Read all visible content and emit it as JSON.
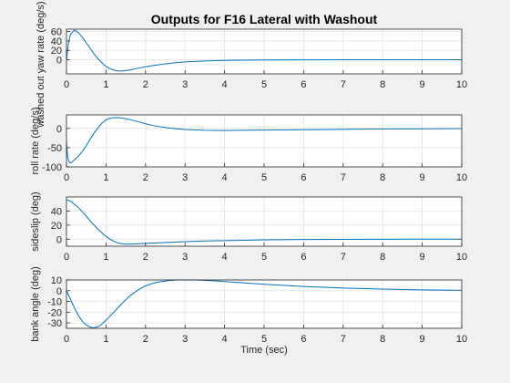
{
  "figure": {
    "title": "Outputs for F16 Lateral with Washout",
    "background": "#f0f0f0",
    "axes_background": "#ffffff",
    "grid_color": "#dfdfdf",
    "line_color": "#0072bd"
  },
  "chart_data": [
    {
      "type": "line",
      "title": "Outputs for F16 Lateral with Washout",
      "xlabel": "",
      "ylabel": "washed out yaw rate (deg/s)",
      "xlim": [
        0,
        10
      ],
      "ylim": [
        -30,
        65
      ],
      "xticks": [
        0,
        1,
        2,
        3,
        4,
        5,
        6,
        7,
        8,
        9,
        10
      ],
      "yticks": [
        0,
        20,
        40,
        60
      ],
      "grid": true,
      "series": [
        {
          "x": [
            0,
            0.05,
            0.1,
            0.2,
            0.3,
            0.4,
            0.5,
            0.6,
            0.7,
            0.8,
            0.9,
            1.0,
            1.1,
            1.2,
            1.3,
            1.4,
            1.5,
            1.6,
            1.7,
            1.8,
            2.0,
            2.2,
            2.5,
            2.8,
            3.0,
            3.5,
            4.0,
            4.5,
            5.0,
            6.0,
            7.0,
            8.0,
            9.0,
            10.0
          ],
          "y": [
            0,
            35,
            54,
            63,
            58,
            48,
            36,
            24,
            12,
            2,
            -7,
            -14,
            -19,
            -22,
            -24,
            -24,
            -23,
            -22,
            -20,
            -18,
            -15,
            -12,
            -9,
            -6,
            -4.5,
            -2.5,
            -1.5,
            -0.8,
            -0.4,
            -0.2,
            0,
            0,
            0,
            0
          ]
        }
      ]
    },
    {
      "type": "line",
      "ylabel": "roll rate (deg/s)",
      "xlim": [
        0,
        10
      ],
      "ylim": [
        -100,
        35
      ],
      "xticks": [
        0,
        1,
        2,
        3,
        4,
        5,
        6,
        7,
        8,
        9,
        10
      ],
      "yticks": [
        -100,
        -50,
        0
      ],
      "grid": true,
      "series": [
        {
          "x": [
            0,
            0.03,
            0.07,
            0.1,
            0.15,
            0.2,
            0.3,
            0.4,
            0.5,
            0.6,
            0.7,
            0.8,
            0.9,
            1.0,
            1.1,
            1.2,
            1.3,
            1.4,
            1.5,
            1.6,
            1.8,
            2.0,
            2.2,
            2.5,
            2.8,
            3.0,
            3.5,
            4.0,
            5.0,
            6.0,
            7.0,
            8.0,
            9.0,
            10.0
          ],
          "y": [
            -35,
            -75,
            -88,
            -90,
            -87,
            -82,
            -72,
            -60,
            -45,
            -28,
            -12,
            2,
            14,
            22,
            26,
            28,
            28,
            27,
            25,
            23,
            18,
            12,
            7,
            2,
            -1,
            -3,
            -5,
            -5.5,
            -4.5,
            -3.5,
            -2.5,
            -1.5,
            -1,
            -0.5
          ]
        }
      ]
    },
    {
      "type": "line",
      "ylabel": "sideslip (deg)",
      "xlim": [
        0,
        10
      ],
      "ylim": [
        -10,
        60
      ],
      "xticks": [
        0,
        1,
        2,
        3,
        4,
        5,
        6,
        7,
        8,
        9,
        10
      ],
      "yticks": [
        0,
        20,
        40
      ],
      "grid": true,
      "series": [
        {
          "x": [
            0,
            0.1,
            0.2,
            0.3,
            0.4,
            0.5,
            0.6,
            0.7,
            0.8,
            0.9,
            1.0,
            1.1,
            1.2,
            1.3,
            1.4,
            1.5,
            1.6,
            1.7,
            1.8,
            2.0,
            2.2,
            2.4,
            2.6,
            2.8,
            3.0,
            3.5,
            4.0,
            4.5,
            5.0,
            6.0,
            7.0,
            8.0,
            9.0,
            10.0
          ],
          "y": [
            56,
            54,
            50,
            45,
            39,
            33,
            26,
            20,
            14,
            9,
            4,
            0,
            -3,
            -5.5,
            -6.5,
            -7,
            -7,
            -6.8,
            -6.5,
            -6,
            -5.5,
            -5,
            -4.5,
            -4,
            -3.5,
            -2.5,
            -2,
            -1.5,
            -1,
            -0.5,
            -0.3,
            -0.1,
            0,
            0
          ]
        }
      ]
    },
    {
      "type": "line",
      "xlabel": "Time (sec)",
      "ylabel": "bank angle (deg)",
      "xlim": [
        0,
        10
      ],
      "ylim": [
        -35,
        10
      ],
      "xticks": [
        0,
        1,
        2,
        3,
        4,
        5,
        6,
        7,
        8,
        9,
        10
      ],
      "yticks": [
        -30,
        -20,
        -10,
        0,
        10
      ],
      "grid": true,
      "series": [
        {
          "x": [
            0,
            0.1,
            0.2,
            0.3,
            0.4,
            0.5,
            0.6,
            0.7,
            0.8,
            0.9,
            1.0,
            1.2,
            1.4,
            1.6,
            1.8,
            2.0,
            2.2,
            2.4,
            2.6,
            2.8,
            3.0,
            3.2,
            3.4,
            3.6,
            3.8,
            4.0,
            4.5,
            5.0,
            5.5,
            6.0,
            6.5,
            7.0,
            8.0,
            9.0,
            10.0
          ],
          "y": [
            0,
            -8,
            -16,
            -23,
            -28.5,
            -32,
            -34,
            -34.5,
            -33.5,
            -31,
            -27.5,
            -20,
            -12,
            -5,
            0.5,
            4.5,
            7,
            8.5,
            9.5,
            10,
            10,
            10,
            9.8,
            9.5,
            9,
            8.5,
            7.2,
            6,
            5,
            4,
            3.2,
            2.5,
            1.5,
            0.8,
            0.3
          ]
        }
      ]
    }
  ]
}
